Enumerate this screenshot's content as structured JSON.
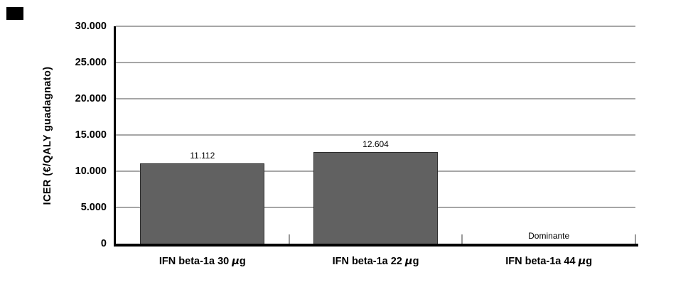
{
  "figure": {
    "background": "#ffffff",
    "corner_mark_color": "#000000"
  },
  "chart_data": {
    "type": "bar",
    "title": "",
    "xlabel": "",
    "ylabel": "ICER (€/QALY guadagnato)",
    "categories": [
      "IFN beta-1a 30 µg",
      "IFN beta-1a 22 µg",
      "IFN beta-1a 44 µg"
    ],
    "values": [
      11112,
      12604,
      null
    ],
    "bar_value_labels": [
      "11.112",
      "12.604",
      "Dominante"
    ],
    "ylim": [
      0,
      30000
    ],
    "ytick_interval": 5000,
    "yticks": [
      {
        "value": 30000,
        "label": "30.000"
      },
      {
        "value": 25000,
        "label": "25.000"
      },
      {
        "value": 20000,
        "label": "20.000"
      },
      {
        "value": 15000,
        "label": "15.000"
      },
      {
        "value": 10000,
        "label": "10.000"
      },
      {
        "value": 5000,
        "label": "5.000"
      },
      {
        "value": 0,
        "label": "0"
      }
    ],
    "grid": true,
    "legend": false,
    "colors": {
      "bar_fill": "#616161",
      "bar_border": "#2e2e2e",
      "gridline": "#a6a6a6",
      "axis": "#000000",
      "text": "#000000"
    }
  }
}
